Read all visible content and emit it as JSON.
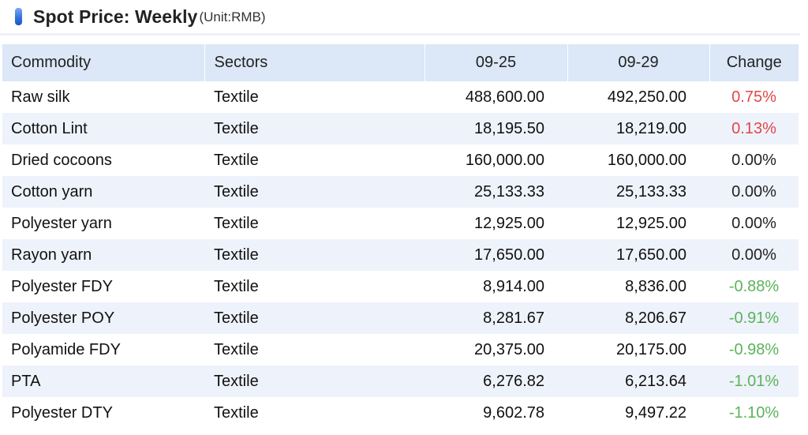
{
  "header": {
    "title": "Spot Price: Weekly",
    "unit": "(Unit:RMB)"
  },
  "table": {
    "columns": [
      "Commodity",
      "Sectors",
      "09-25",
      "09-29",
      "Change"
    ],
    "rows": [
      {
        "commodity": "Raw silk",
        "sector": "Textile",
        "d1": "488,600.00",
        "d2": "492,250.00",
        "change": "0.75%",
        "trend": "pos"
      },
      {
        "commodity": "Cotton Lint",
        "sector": "Textile",
        "d1": "18,195.50",
        "d2": "18,219.00",
        "change": "0.13%",
        "trend": "pos"
      },
      {
        "commodity": "Dried cocoons",
        "sector": "Textile",
        "d1": "160,000.00",
        "d2": "160,000.00",
        "change": "0.00%",
        "trend": "zero"
      },
      {
        "commodity": "Cotton yarn",
        "sector": "Textile",
        "d1": "25,133.33",
        "d2": "25,133.33",
        "change": "0.00%",
        "trend": "zero"
      },
      {
        "commodity": "Polyester yarn",
        "sector": "Textile",
        "d1": "12,925.00",
        "d2": "12,925.00",
        "change": "0.00%",
        "trend": "zero"
      },
      {
        "commodity": "Rayon yarn",
        "sector": "Textile",
        "d1": "17,650.00",
        "d2": "17,650.00",
        "change": "0.00%",
        "trend": "zero"
      },
      {
        "commodity": "Polyester FDY",
        "sector": "Textile",
        "d1": "8,914.00",
        "d2": "8,836.00",
        "change": "-0.88%",
        "trend": "neg"
      },
      {
        "commodity": "Polyester POY",
        "sector": "Textile",
        "d1": "8,281.67",
        "d2": "8,206.67",
        "change": "-0.91%",
        "trend": "neg"
      },
      {
        "commodity": "Polyamide FDY",
        "sector": "Textile",
        "d1": "20,375.00",
        "d2": "20,175.00",
        "change": "-0.98%",
        "trend": "neg"
      },
      {
        "commodity": "PTA",
        "sector": "Textile",
        "d1": "6,276.82",
        "d2": "6,213.64",
        "change": "-1.01%",
        "trend": "neg"
      },
      {
        "commodity": "Polyester DTY",
        "sector": "Textile",
        "d1": "9,602.78",
        "d2": "9,497.22",
        "change": "-1.10%",
        "trend": "neg"
      }
    ]
  },
  "colors": {
    "positive": "#e04848",
    "negative": "#5bb35b",
    "header_bg": "#dce7f7",
    "stripe_bg": "#eef2fb",
    "marker": "#2f6fdc"
  }
}
